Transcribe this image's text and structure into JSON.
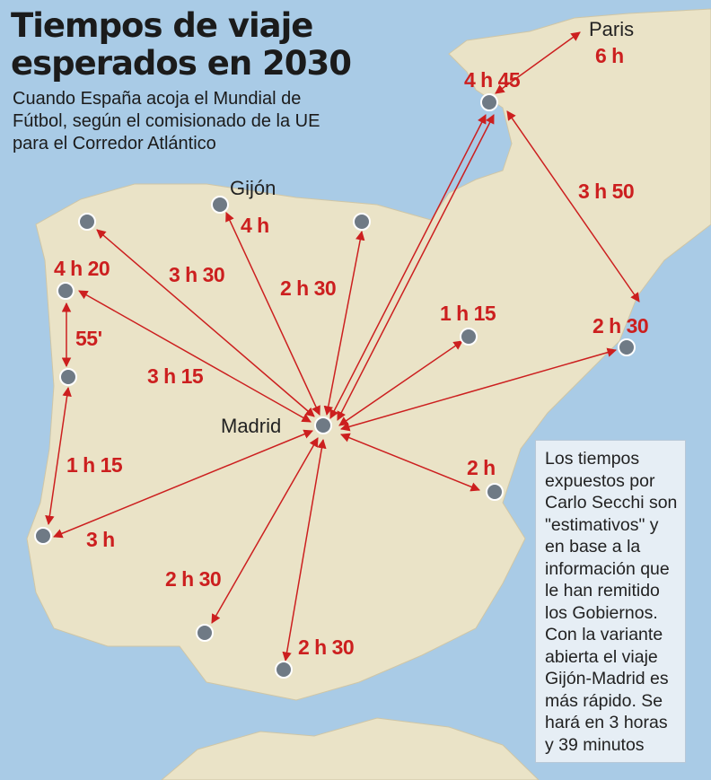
{
  "title_line1": "Tiempos de viaje",
  "title_line2": "esperados en 2030",
  "subtitle": "Cuando España acoja el Mundial de Fútbol, según el comisionado de la UE para el Corredor Atlántico",
  "cities": {
    "gijon": "Gijón",
    "madrid": "Madrid",
    "paris": "Paris"
  },
  "times": {
    "paris": "6 h",
    "bordeaux": "4 h 45",
    "bordeaux_barcelona": "3 h 50",
    "gijon": "4 h",
    "a_coruna": "3 h 30",
    "santander": "2 h 30",
    "vigo": "4 h 20",
    "zaragoza": "1 h 15",
    "barcelona": "2 h 30",
    "vigo_porto": "55'",
    "porto": "3 h 15",
    "porto_lisbon": "1 h 15",
    "lisbon": "3 h",
    "valencia": "2 h",
    "seville": "2 h 30",
    "malaga": "2 h 30"
  },
  "note": "Los tiempos expuestos por Carlo Secchi son \"estimativos\" y en base a la información que le han remitido los Gobiernos. Con la variante abierta el viaje Gijón-Madrid es más rápido. Se hará en 3 horas y 39 minutos",
  "colors": {
    "sea": "#a9cbe6",
    "land": "#eae3c7",
    "route": "#cc1f1f",
    "node": "#6f7a85"
  },
  "icons": {
    "city_node": "circle",
    "route_arrow": "double-headed-arrow"
  }
}
